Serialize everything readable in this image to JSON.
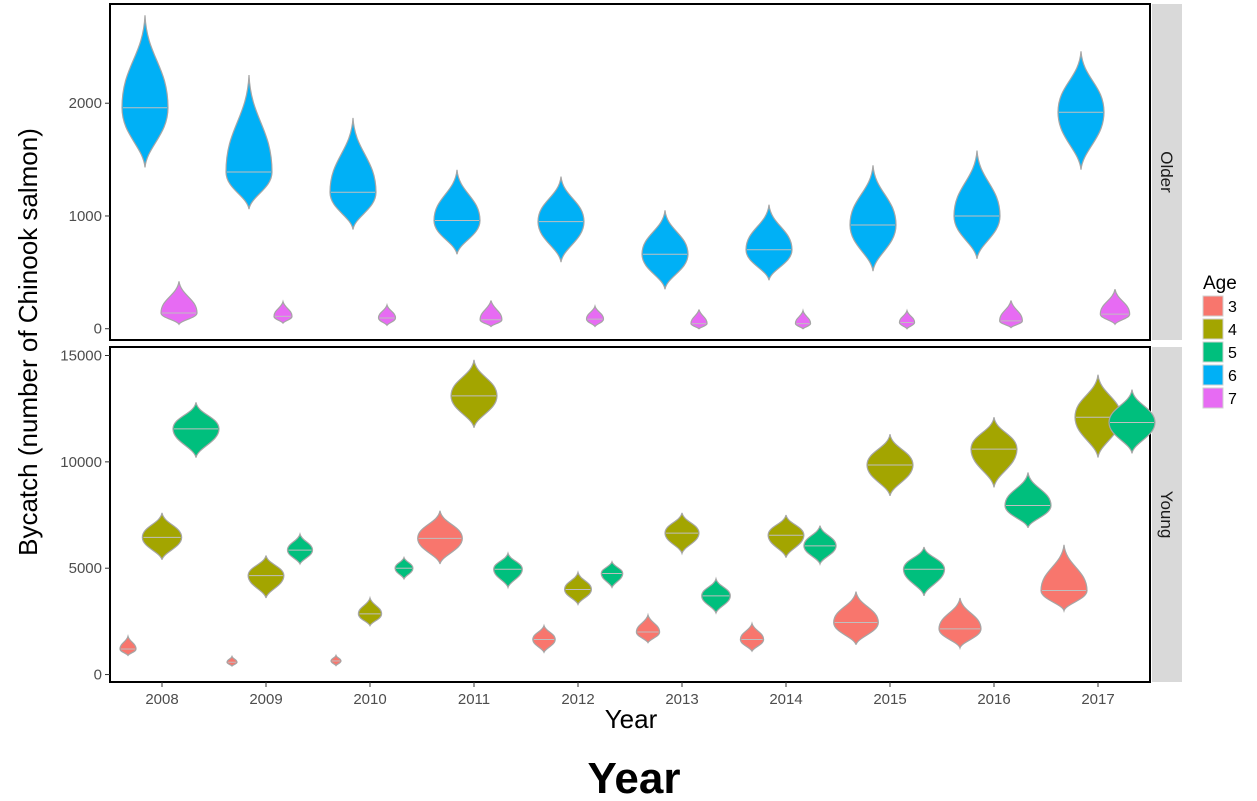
{
  "chart_data": {
    "type": "violin",
    "xlabel": "Year",
    "ylabel": "Bycatch (number of Chinook salmon)",
    "caption": "Year",
    "x_categories": [
      "2008",
      "2009",
      "2010",
      "2011",
      "2012",
      "2013",
      "2014",
      "2015",
      "2016",
      "2017"
    ],
    "legend": {
      "title": "Age",
      "placement": "right",
      "entries": [
        {
          "label": "3",
          "color": "#F8766D"
        },
        {
          "label": "4",
          "color": "#A3A500"
        },
        {
          "label": "5",
          "color": "#00BF7D"
        },
        {
          "label": "6",
          "color": "#00B0F6"
        },
        {
          "label": "7",
          "color": "#E76BF3"
        }
      ]
    },
    "panels": [
      {
        "strip_label": "Older",
        "ylim": [
          -100,
          2880
        ],
        "yticks": [
          0,
          1000,
          2000
        ],
        "series": [
          {
            "age": "6",
            "values": [
              {
                "year": "2008",
                "median": 1960,
                "min": 1430,
                "max": 2780
              },
              {
                "year": "2009",
                "median": 1390,
                "min": 1060,
                "max": 2250
              },
              {
                "year": "2010",
                "median": 1210,
                "min": 880,
                "max": 1870
              },
              {
                "year": "2011",
                "median": 960,
                "min": 660,
                "max": 1410
              },
              {
                "year": "2012",
                "median": 950,
                "min": 590,
                "max": 1350
              },
              {
                "year": "2013",
                "median": 660,
                "min": 350,
                "max": 1050
              },
              {
                "year": "2014",
                "median": 700,
                "min": 430,
                "max": 1100
              },
              {
                "year": "2015",
                "median": 920,
                "min": 510,
                "max": 1450
              },
              {
                "year": "2016",
                "median": 1000,
                "min": 620,
                "max": 1580
              },
              {
                "year": "2017",
                "median": 1920,
                "min": 1410,
                "max": 2460
              }
            ]
          },
          {
            "age": "7",
            "values": [
              {
                "year": "2008",
                "median": 140,
                "min": 40,
                "max": 420
              },
              {
                "year": "2009",
                "median": 110,
                "min": 50,
                "max": 240
              },
              {
                "year": "2010",
                "median": 95,
                "min": 30,
                "max": 210
              },
              {
                "year": "2011",
                "median": 80,
                "min": 20,
                "max": 250
              },
              {
                "year": "2012",
                "median": 85,
                "min": 20,
                "max": 200
              },
              {
                "year": "2013",
                "median": 45,
                "min": 0,
                "max": 170
              },
              {
                "year": "2014",
                "median": 45,
                "min": 0,
                "max": 160
              },
              {
                "year": "2015",
                "median": 55,
                "min": 0,
                "max": 160
              },
              {
                "year": "2016",
                "median": 70,
                "min": 10,
                "max": 250
              },
              {
                "year": "2017",
                "median": 130,
                "min": 40,
                "max": 350
              }
            ]
          }
        ]
      },
      {
        "strip_label": "Young",
        "ylim": [
          -350,
          15400
        ],
        "yticks": [
          0,
          5000,
          10000,
          15000
        ],
        "series": [
          {
            "age": "3",
            "values": [
              {
                "year": "2008",
                "median": 1200,
                "min": 900,
                "max": 1800
              },
              {
                "year": "2009",
                "median": 580,
                "min": 400,
                "max": 850
              },
              {
                "year": "2010",
                "median": 640,
                "min": 420,
                "max": 900
              },
              {
                "year": "2011",
                "median": 6400,
                "min": 5200,
                "max": 7700
              },
              {
                "year": "2012",
                "median": 1650,
                "min": 1050,
                "max": 2300
              },
              {
                "year": "2013",
                "median": 2000,
                "min": 1500,
                "max": 2800
              },
              {
                "year": "2014",
                "median": 1650,
                "min": 1100,
                "max": 2400
              },
              {
                "year": "2015",
                "median": 2450,
                "min": 1400,
                "max": 3900
              },
              {
                "year": "2016",
                "median": 2150,
                "min": 1250,
                "max": 3600
              },
              {
                "year": "2017",
                "median": 3950,
                "min": 3000,
                "max": 6100
              }
            ]
          },
          {
            "age": "4",
            "values": [
              {
                "year": "2008",
                "median": 6450,
                "min": 5400,
                "max": 7600
              },
              {
                "year": "2009",
                "median": 4650,
                "min": 3600,
                "max": 5600
              },
              {
                "year": "2010",
                "median": 2850,
                "min": 2300,
                "max": 3600
              },
              {
                "year": "2011",
                "median": 13100,
                "min": 11600,
                "max": 14800
              },
              {
                "year": "2012",
                "median": 4000,
                "min": 3300,
                "max": 4800
              },
              {
                "year": "2013",
                "median": 6650,
                "min": 5700,
                "max": 7600
              },
              {
                "year": "2014",
                "median": 6550,
                "min": 5500,
                "max": 7500
              },
              {
                "year": "2015",
                "median": 9850,
                "min": 8400,
                "max": 11300
              },
              {
                "year": "2016",
                "median": 10600,
                "min": 8800,
                "max": 12100
              },
              {
                "year": "2017",
                "median": 12100,
                "min": 10200,
                "max": 14100
              }
            ]
          },
          {
            "age": "5",
            "values": [
              {
                "year": "2008",
                "median": 11550,
                "min": 10200,
                "max": 12800
              },
              {
                "year": "2009",
                "median": 5850,
                "min": 5200,
                "max": 6600
              },
              {
                "year": "2010",
                "median": 5000,
                "min": 4500,
                "max": 5500
              },
              {
                "year": "2011",
                "median": 4950,
                "min": 4100,
                "max": 5700
              },
              {
                "year": "2012",
                "median": 4750,
                "min": 4100,
                "max": 5300
              },
              {
                "year": "2013",
                "median": 3700,
                "min": 2900,
                "max": 4500
              },
              {
                "year": "2014",
                "median": 6050,
                "min": 5200,
                "max": 7000
              },
              {
                "year": "2015",
                "median": 4950,
                "min": 3700,
                "max": 6000
              },
              {
                "year": "2016",
                "median": 7950,
                "min": 6900,
                "max": 9500
              },
              {
                "year": "2017",
                "median": 11850,
                "min": 10400,
                "max": 13400
              }
            ]
          }
        ]
      }
    ]
  }
}
